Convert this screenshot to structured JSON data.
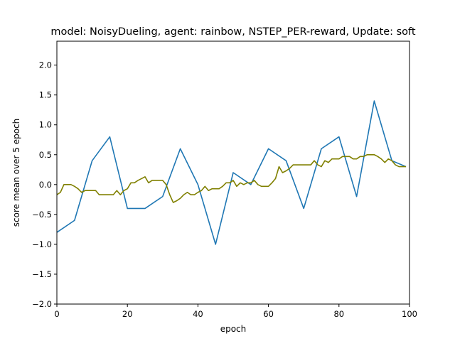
{
  "chart_data": {
    "type": "line",
    "title": "model: NoisyDueling, agent: rainbow, NSTEP_PER-reward, Update: soft",
    "xlabel": "epoch",
    "ylabel": "score mean over 5 epoch",
    "xlim": [
      0,
      100
    ],
    "ylim": [
      -2.0,
      2.4
    ],
    "xticks": [
      0,
      20,
      40,
      60,
      80,
      100
    ],
    "xtick_labels": [
      "0",
      "20",
      "40",
      "60",
      "80",
      "100"
    ],
    "yticks": [
      -2.0,
      -1.5,
      -1.0,
      -0.5,
      0.0,
      0.5,
      1.0,
      1.5,
      2.0
    ],
    "ytick_labels": [
      "−2.0",
      "−1.5",
      "−1.0",
      "−0.5",
      "0.0",
      "0.5",
      "1.0",
      "1.5",
      "2.0"
    ],
    "grid": false,
    "legend": false,
    "series": [
      {
        "color": "#1f77b4",
        "x": [
          0,
          5,
          10,
          15,
          20,
          25,
          30,
          35,
          40,
          45,
          50,
          55,
          60,
          65,
          70,
          75,
          80,
          85,
          90,
          95,
          99
        ],
        "y": [
          -0.8,
          -0.6,
          0.4,
          0.8,
          -0.4,
          -0.4,
          -0.2,
          0.6,
          0.0,
          -1.0,
          0.2,
          0.0,
          0.6,
          0.4,
          -0.4,
          0.6,
          0.8,
          -0.2,
          1.4,
          0.4,
          0.3
        ]
      },
      {
        "color": "#808000",
        "x": [
          0,
          1,
          2,
          3,
          4,
          5,
          6,
          7,
          8,
          9,
          10,
          11,
          12,
          13,
          14,
          15,
          16,
          17,
          18,
          19,
          20,
          21,
          22,
          23,
          24,
          25,
          26,
          27,
          28,
          29,
          30,
          31,
          32,
          33,
          34,
          35,
          36,
          37,
          38,
          39,
          40,
          41,
          42,
          43,
          44,
          45,
          46,
          47,
          48,
          49,
          50,
          51,
          52,
          53,
          54,
          55,
          56,
          57,
          58,
          59,
          60,
          61,
          62,
          63,
          64,
          65,
          66,
          67,
          68,
          69,
          70,
          71,
          72,
          73,
          74,
          75,
          76,
          77,
          78,
          79,
          80,
          81,
          82,
          83,
          84,
          85,
          86,
          87,
          88,
          89,
          90,
          91,
          92,
          93,
          94,
          95,
          96,
          97,
          98,
          99
        ],
        "y": [
          -0.17,
          -0.13,
          0.0,
          0.0,
          0.0,
          -0.03,
          -0.07,
          -0.13,
          -0.1,
          -0.1,
          -0.1,
          -0.1,
          -0.17,
          -0.17,
          -0.17,
          -0.17,
          -0.17,
          -0.1,
          -0.17,
          -0.1,
          -0.07,
          0.03,
          0.03,
          0.07,
          0.1,
          0.13,
          0.03,
          0.07,
          0.07,
          0.07,
          0.07,
          0.0,
          -0.17,
          -0.3,
          -0.27,
          -0.23,
          -0.17,
          -0.13,
          -0.17,
          -0.17,
          -0.13,
          -0.1,
          -0.03,
          -0.1,
          -0.07,
          -0.07,
          -0.07,
          -0.03,
          0.03,
          0.03,
          0.07,
          -0.03,
          0.03,
          0.0,
          0.03,
          0.03,
          0.07,
          0.0,
          -0.03,
          -0.03,
          -0.03,
          0.03,
          0.1,
          0.3,
          0.2,
          0.23,
          0.27,
          0.33,
          0.33,
          0.33,
          0.33,
          0.33,
          0.33,
          0.4,
          0.33,
          0.3,
          0.4,
          0.37,
          0.43,
          0.43,
          0.43,
          0.47,
          0.47,
          0.47,
          0.43,
          0.43,
          0.47,
          0.47,
          0.5,
          0.5,
          0.5,
          0.47,
          0.43,
          0.37,
          0.43,
          0.4,
          0.33,
          0.3,
          0.3,
          0.3
        ]
      }
    ]
  }
}
